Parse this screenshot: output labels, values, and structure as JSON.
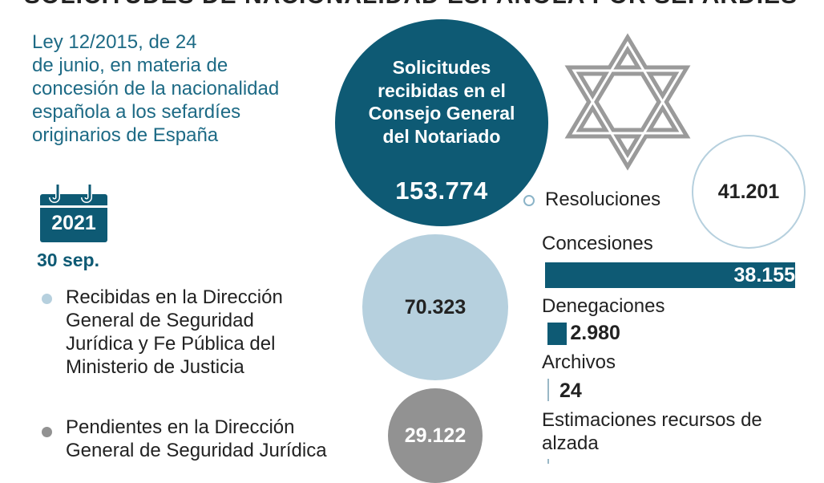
{
  "header": {
    "title": "SOLICITUDES DE NACIONALIDAD ESPAÑOLA POR SEFARDÍES"
  },
  "intro": {
    "lines": [
      "Ley 12/2015, de 24",
      "de junio, en materia de",
      "concesión de la nacionalidad",
      "española a los sefardíes",
      "originarios de España"
    ]
  },
  "main": {
    "label_lines": [
      "Solicitudes",
      "recibidas en el",
      "Consejo General",
      "del Notariado"
    ],
    "value": "153.774"
  },
  "date": {
    "year": "2021",
    "day": "30 sep."
  },
  "recibidas": {
    "lines": [
      "Recibidas en la Dirección",
      "General de Seguridad",
      "Jurídica y Fe Pública del",
      "Ministerio de Justicia"
    ],
    "value": "70.323"
  },
  "pendientes": {
    "lines": [
      "Pendientes en la Dirección",
      "General de Seguridad Jurídica"
    ],
    "value": "29.122"
  },
  "resoluciones": {
    "label": "Resoluciones",
    "value": "41.201"
  },
  "chart_data": {
    "type": "bar",
    "title": "",
    "categories": [
      "Concesiones",
      "Denegaciones",
      "Archivos",
      "Estimaciones recursos de alzada"
    ],
    "values": [
      38155,
      2980,
      24,
      null
    ],
    "value_labels": [
      "38.155",
      "2.980",
      "24",
      ""
    ],
    "bar_color": "#0e5a74"
  },
  "colors": {
    "dark_teal": "#0e5a74",
    "light_blue": "#b6d0de",
    "gray": "#929292",
    "intro_text": "#1d6a85"
  },
  "icons": {
    "star": "star-of-david-icon",
    "calendar": "calendar-icon"
  }
}
